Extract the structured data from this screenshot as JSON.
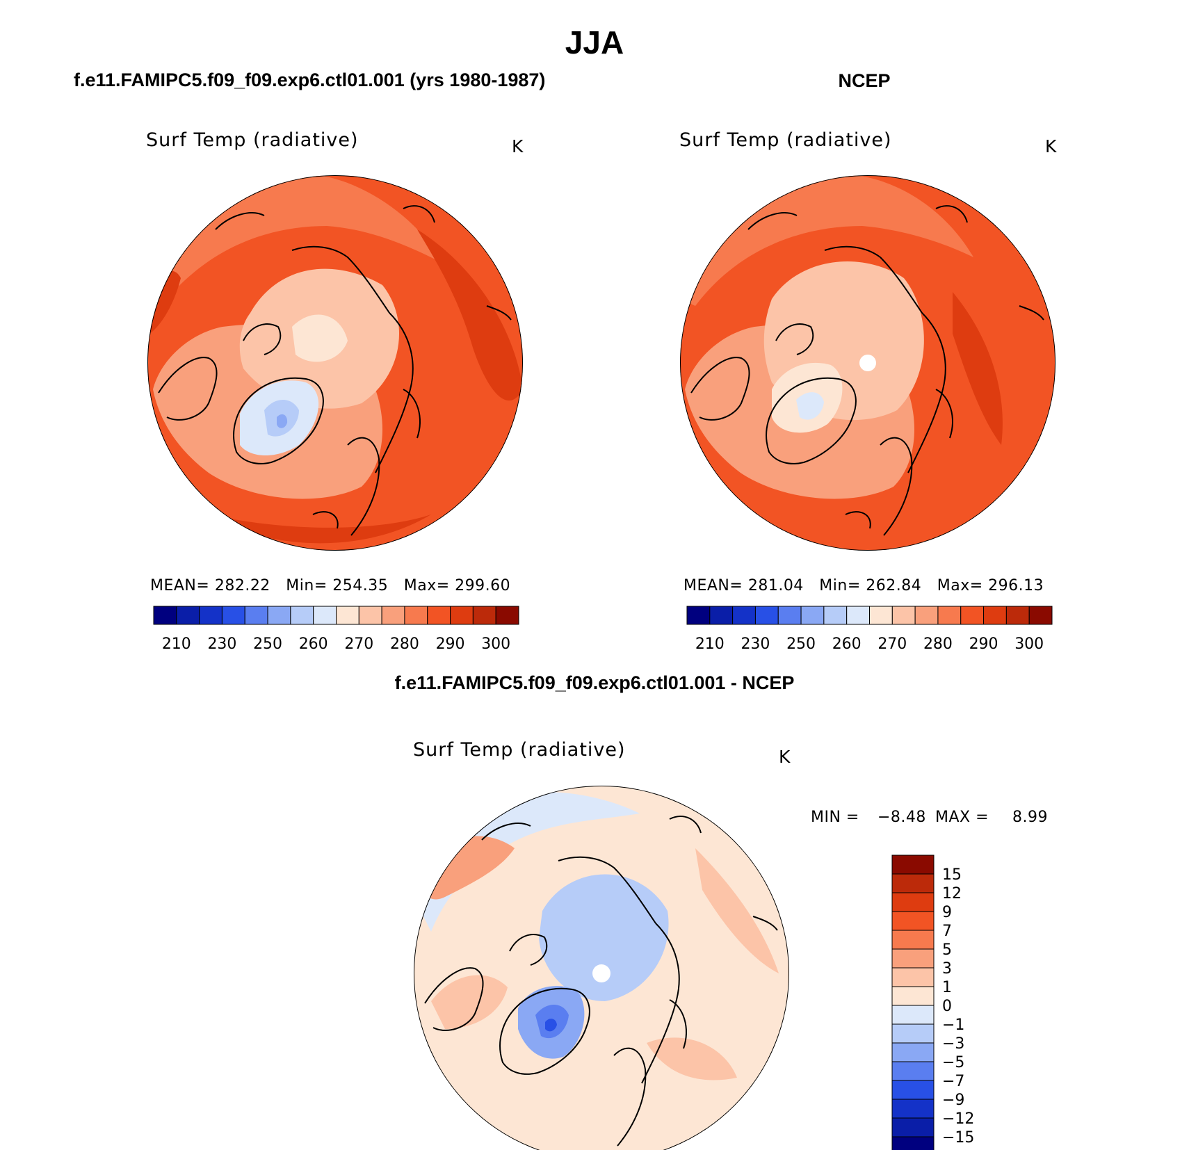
{
  "title": "JJA",
  "panels": [
    {
      "id": "model",
      "case_title": "f.e11.FAMIPC5.f09_f09.exp6.ctl01.001 (yrs 1980-1987)",
      "variable": "Surf Temp (radiative)",
      "units": "K",
      "stats": {
        "mean_label": "MEAN=",
        "mean": "282.22",
        "min_label": "Min=",
        "min": "254.35",
        "max_label": "Max=",
        "max": "299.60"
      },
      "has_pole_hole": false
    },
    {
      "id": "obs",
      "case_title": "NCEP",
      "variable": "Surf Temp (radiative)",
      "units": "K",
      "stats": {
        "mean_label": "MEAN=",
        "mean": "281.04",
        "min_label": "Min=",
        "min": "262.84",
        "max_label": "Max=",
        "max": "296.13"
      },
      "has_pole_hole": true
    }
  ],
  "abs_colorbar": {
    "colors": [
      "#00007f",
      "#0a1ea8",
      "#1432c8",
      "#2850e6",
      "#5a7ef0",
      "#8aa8f4",
      "#b6ccf8",
      "#dce8fa",
      "#fde6d4",
      "#fcc4a8",
      "#f9a07c",
      "#f77a4e",
      "#f25424",
      "#de3c10",
      "#bc2a0a",
      "#8a0a00"
    ],
    "tick_labels": [
      "210",
      "230",
      "250",
      "260",
      "270",
      "280",
      "290",
      "300"
    ]
  },
  "difference": {
    "case_title": "f.e11.FAMIPC5.f09_f09.exp6.ctl01.001 - NCEP",
    "variable": "Surf Temp (radiative)",
    "units": "K",
    "min_label": "MIN =",
    "min": "−8.48",
    "max_label": "MAX =",
    "max": "8.99",
    "colorbar": {
      "colors": [
        "#8a0a00",
        "#bc2a0a",
        "#de3c10",
        "#f25424",
        "#f77a4e",
        "#f9a07c",
        "#fcc4a8",
        "#fde6d4",
        "#dce8fa",
        "#b6ccf8",
        "#8aa8f4",
        "#5a7ef0",
        "#2850e6",
        "#1432c8",
        "#0a1ea8",
        "#00007f"
      ],
      "tick_labels": [
        "15",
        "12",
        "9",
        "7",
        "5",
        "3",
        "1",
        "0",
        "−1",
        "−3",
        "−5",
        "−7",
        "−9",
        "−12",
        "−15"
      ]
    }
  }
}
